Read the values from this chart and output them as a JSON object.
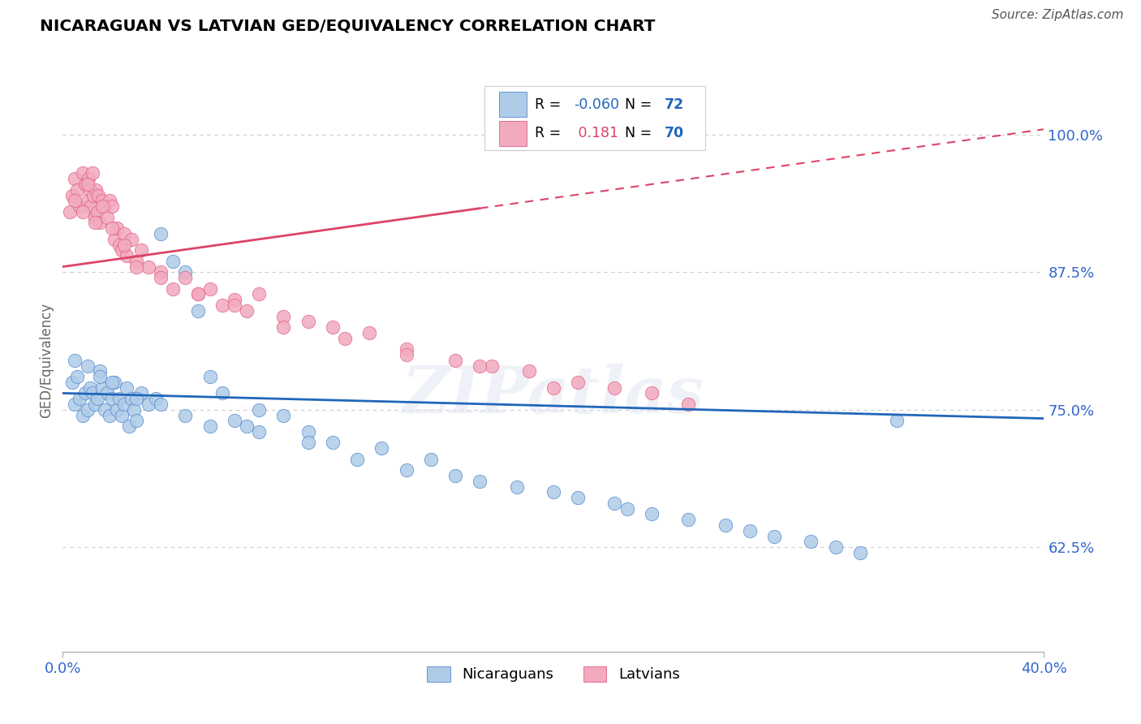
{
  "title": "NICARAGUAN VS LATVIAN GED/EQUIVALENCY CORRELATION CHART",
  "source": "Source: ZipAtlas.com",
  "ylabel": "GED/Equivalency",
  "xlim": [
    0.0,
    40.0
  ],
  "ylim": [
    53.0,
    106.0
  ],
  "blue_R": -0.06,
  "blue_N": 72,
  "pink_R": 0.181,
  "pink_N": 70,
  "blue_color": "#aecce8",
  "pink_color": "#f2aabf",
  "blue_edge_color": "#5588cc",
  "pink_edge_color": "#e06080",
  "blue_line_color": "#2266bb",
  "pink_line_color": "#dd4466",
  "yticks": [
    62.5,
    75.0,
    87.5,
    100.0
  ],
  "ytick_labels": [
    "62.5%",
    "75.0%",
    "87.5%",
    "100.0%"
  ],
  "xtick_labels": [
    "0.0%",
    "40.0%"
  ],
  "legend_blue_label": "Nicaraguans",
  "legend_pink_label": "Latvians",
  "blue_line_y0": 76.5,
  "blue_line_y1": 74.2,
  "pink_line_y0": 88.0,
  "pink_line_y1": 100.5,
  "blue_x": [
    0.4,
    0.5,
    0.6,
    0.7,
    0.8,
    0.9,
    1.0,
    1.1,
    1.2,
    1.3,
    1.4,
    1.5,
    1.6,
    1.7,
    1.8,
    1.9,
    2.0,
    2.1,
    2.2,
    2.3,
    2.4,
    2.5,
    2.6,
    2.7,
    2.8,
    2.9,
    3.0,
    3.2,
    3.5,
    3.8,
    4.0,
    4.5,
    5.0,
    5.5,
    6.0,
    6.5,
    7.0,
    7.5,
    8.0,
    9.0,
    10.0,
    11.0,
    12.0,
    13.0,
    14.0,
    15.0,
    16.0,
    17.0,
    18.5,
    20.0,
    21.0,
    22.5,
    23.0,
    24.0,
    25.5,
    27.0,
    28.0,
    29.0,
    30.5,
    31.5,
    32.5,
    34.0,
    0.5,
    1.0,
    1.5,
    2.0,
    3.0,
    4.0,
    5.0,
    6.0,
    8.0,
    10.0
  ],
  "blue_y": [
    77.5,
    75.5,
    78.0,
    76.0,
    74.5,
    76.5,
    75.0,
    77.0,
    76.5,
    75.5,
    76.0,
    78.5,
    77.0,
    75.0,
    76.5,
    74.5,
    76.0,
    77.5,
    75.0,
    76.0,
    74.5,
    75.5,
    77.0,
    73.5,
    76.0,
    75.0,
    74.0,
    76.5,
    75.5,
    76.0,
    91.0,
    88.5,
    87.5,
    84.0,
    78.0,
    76.5,
    74.0,
    73.5,
    75.0,
    74.5,
    73.0,
    72.0,
    70.5,
    71.5,
    69.5,
    70.5,
    69.0,
    68.5,
    68.0,
    67.5,
    67.0,
    66.5,
    66.0,
    65.5,
    65.0,
    64.5,
    64.0,
    63.5,
    63.0,
    62.5,
    62.0,
    74.0,
    79.5,
    79.0,
    78.0,
    77.5,
    76.0,
    75.5,
    74.5,
    73.5,
    73.0,
    72.0
  ],
  "pink_x": [
    0.3,
    0.4,
    0.5,
    0.6,
    0.7,
    0.8,
    0.9,
    1.0,
    1.05,
    1.1,
    1.15,
    1.2,
    1.25,
    1.3,
    1.35,
    1.4,
    1.45,
    1.5,
    1.6,
    1.7,
    1.8,
    1.9,
    2.0,
    2.1,
    2.2,
    2.3,
    2.4,
    2.5,
    2.6,
    2.8,
    3.0,
    3.2,
    3.5,
    4.0,
    4.5,
    5.0,
    5.5,
    6.0,
    6.5,
    7.0,
    7.5,
    8.0,
    9.0,
    10.0,
    11.0,
    12.5,
    14.0,
    16.0,
    17.5,
    19.0,
    21.0,
    22.5,
    24.0,
    25.5,
    0.5,
    0.8,
    1.0,
    1.3,
    1.6,
    2.0,
    2.5,
    3.0,
    4.0,
    5.5,
    7.0,
    9.0,
    11.5,
    14.0,
    17.0,
    20.0
  ],
  "pink_y": [
    93.0,
    94.5,
    96.0,
    95.0,
    93.5,
    96.5,
    95.5,
    94.0,
    96.0,
    95.0,
    93.5,
    96.5,
    94.5,
    92.5,
    95.0,
    93.0,
    94.5,
    92.0,
    94.0,
    93.5,
    92.5,
    94.0,
    93.5,
    90.5,
    91.5,
    90.0,
    89.5,
    91.0,
    89.0,
    90.5,
    88.5,
    89.5,
    88.0,
    87.5,
    86.0,
    87.0,
    85.5,
    86.0,
    84.5,
    85.0,
    84.0,
    85.5,
    83.5,
    83.0,
    82.5,
    82.0,
    80.5,
    79.5,
    79.0,
    78.5,
    77.5,
    77.0,
    76.5,
    75.5,
    94.0,
    93.0,
    95.5,
    92.0,
    93.5,
    91.5,
    90.0,
    88.0,
    87.0,
    85.5,
    84.5,
    82.5,
    81.5,
    80.0,
    79.0,
    77.0
  ]
}
